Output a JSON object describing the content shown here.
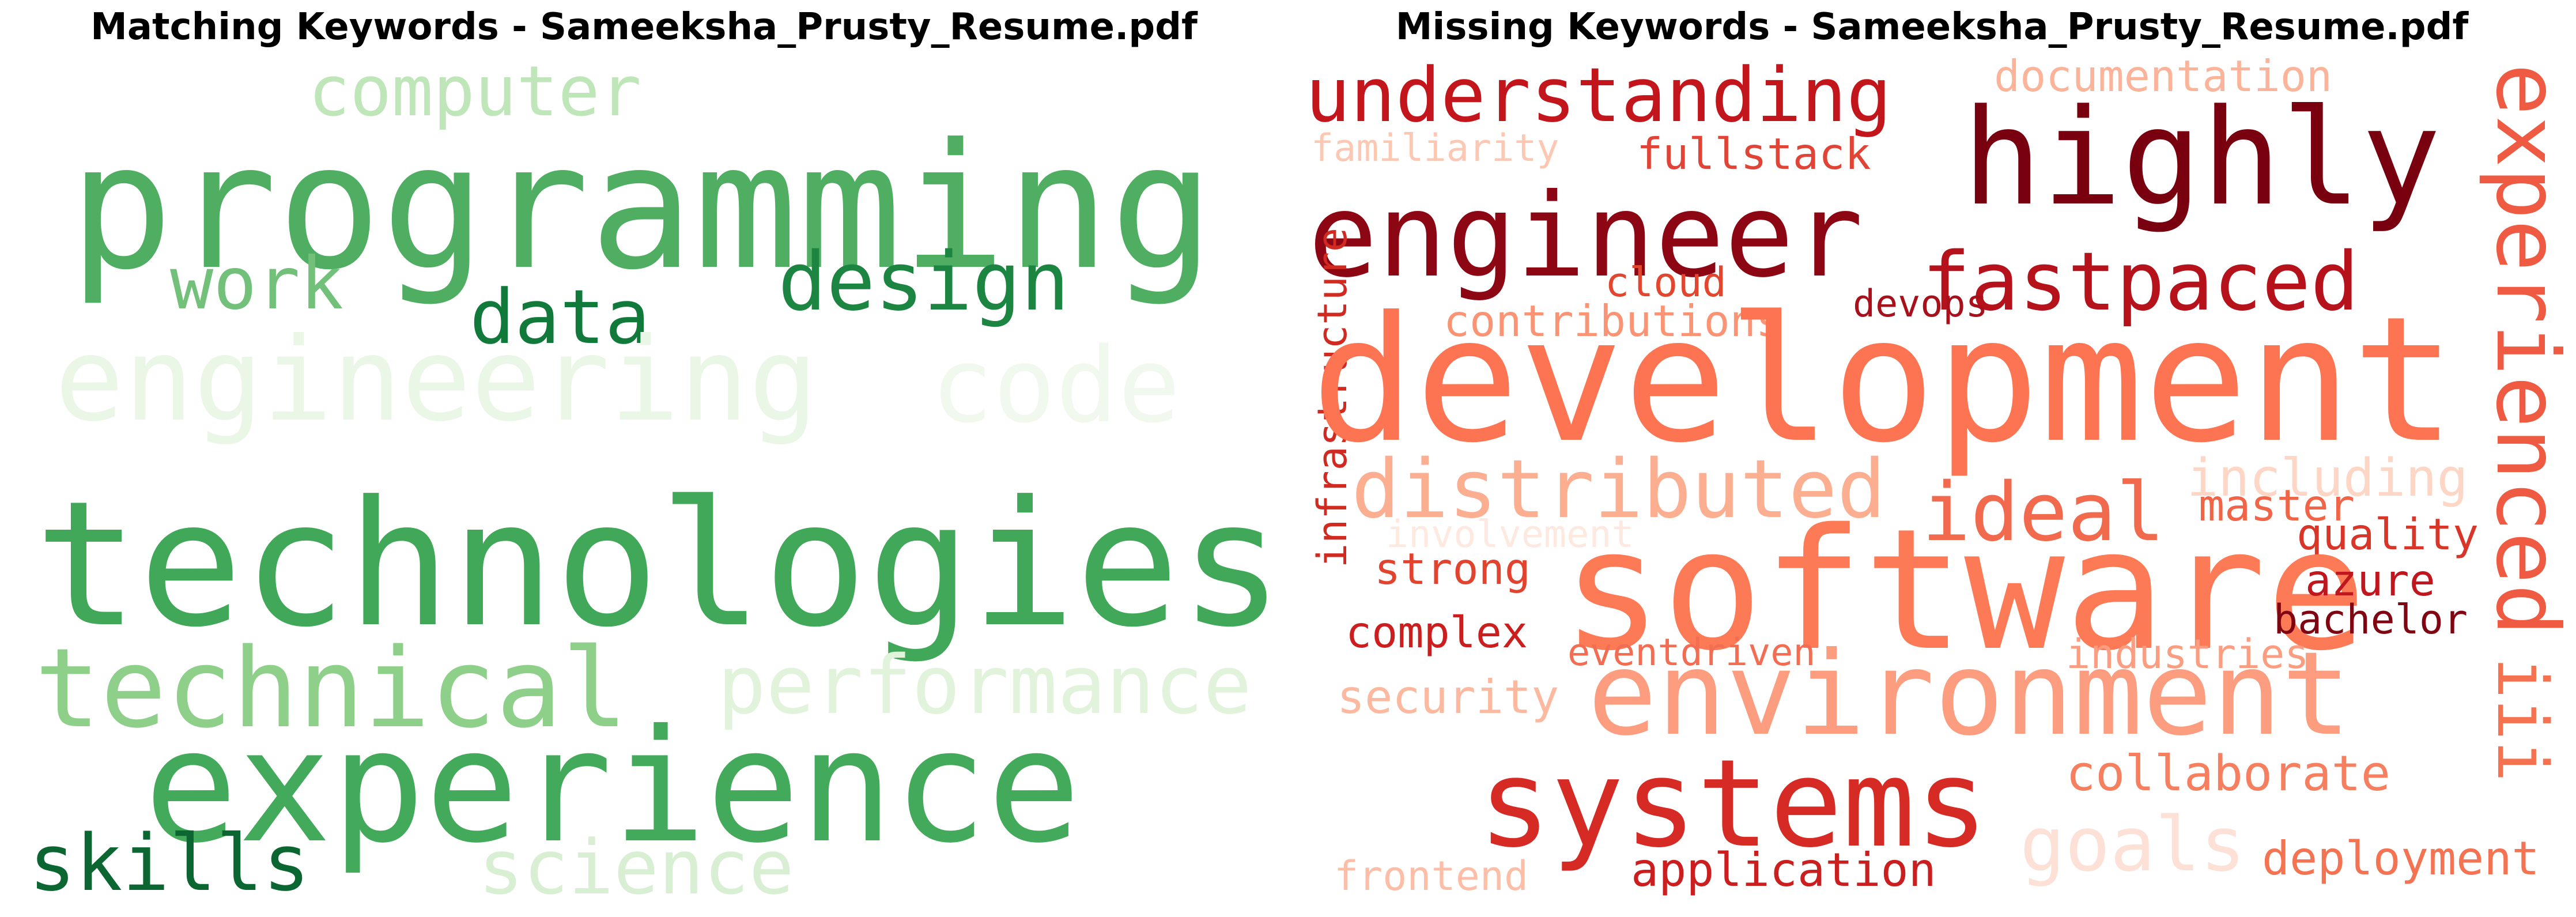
{
  "panels": [
    {
      "title": "Matching Keywords - Sameeksha_Prusty_Resume.pdf",
      "words": [
        {
          "text": "computer",
          "color": "#bfe6b8"
        },
        {
          "text": "programming",
          "color": "#4fae62"
        },
        {
          "text": "work",
          "color": "#72c079"
        },
        {
          "text": "data",
          "color": "#117a3b"
        },
        {
          "text": "design",
          "color": "#1d8542"
        },
        {
          "text": "engineering",
          "color": "#eaf6e6"
        },
        {
          "text": "code",
          "color": "#f1f9ee"
        },
        {
          "text": "technologies",
          "color": "#41a85a"
        },
        {
          "text": "technical",
          "color": "#8ecf89"
        },
        {
          "text": "performance",
          "color": "#e2f3dc"
        },
        {
          "text": "experience",
          "color": "#44aa5b"
        },
        {
          "text": "skills",
          "color": "#0b6631"
        },
        {
          "text": "science",
          "color": "#d9efd3"
        }
      ]
    },
    {
      "title": "Missing Keywords - Sameeksha_Prusty_Resume.pdf",
      "words": [
        {
          "text": "understanding",
          "color": "#c3161c"
        },
        {
          "text": "documentation",
          "color": "#fbb49a"
        },
        {
          "text": "highly",
          "color": "#79000f"
        },
        {
          "text": "familiarity",
          "color": "#fcc8b4"
        },
        {
          "text": "fullstack",
          "color": "#e04436"
        },
        {
          "text": "engineer",
          "color": "#8d0613"
        },
        {
          "text": "experienced",
          "color": "#ee5a42"
        },
        {
          "text": "cloud",
          "color": "#e3462f"
        },
        {
          "text": "fastpaced",
          "color": "#b6121c"
        },
        {
          "text": "infrastructure",
          "color": "#d12a21"
        },
        {
          "text": "contributions",
          "color": "#fb9475"
        },
        {
          "text": "devops",
          "color": "#a8101b"
        },
        {
          "text": "development",
          "color": "#fc7452"
        },
        {
          "text": "distributed",
          "color": "#fcae91"
        },
        {
          "text": "including",
          "color": "#fdd6c6"
        },
        {
          "text": "ideal",
          "color": "#f26a4d"
        },
        {
          "text": "master",
          "color": "#f06448"
        },
        {
          "text": "involvement",
          "color": "#fde9df"
        },
        {
          "text": "quality",
          "color": "#d9362a"
        },
        {
          "text": "strong",
          "color": "#e2432f"
        },
        {
          "text": "software",
          "color": "#fc7a56"
        },
        {
          "text": "azure",
          "color": "#c0161d"
        },
        {
          "text": "complex",
          "color": "#cb1f1f"
        },
        {
          "text": "bachelor",
          "color": "#7f0512"
        },
        {
          "text": "eventdriven",
          "color": "#f26d52"
        },
        {
          "text": "industries",
          "color": "#fa9d80"
        },
        {
          "text": "security",
          "color": "#fcb9a0"
        },
        {
          "text": "environment",
          "color": "#fc9d7f"
        },
        {
          "text": "iii",
          "color": "#f4724f"
        },
        {
          "text": "collaborate",
          "color": "#f57f5f"
        },
        {
          "text": "systems",
          "color": "#d62a24"
        },
        {
          "text": "goals",
          "color": "#fde1d6"
        },
        {
          "text": "frontend",
          "color": "#fdbea7"
        },
        {
          "text": "application",
          "color": "#ca1e1f"
        },
        {
          "text": "deployment",
          "color": "#f47352"
        }
      ]
    }
  ]
}
